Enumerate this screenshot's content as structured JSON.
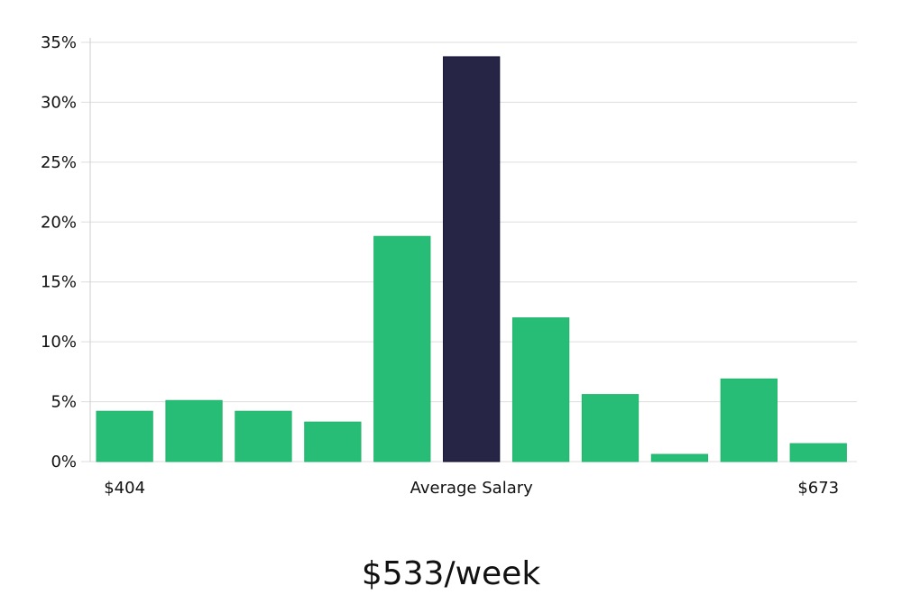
{
  "chart_data": {
    "type": "bar",
    "title": "",
    "xlabel": "",
    "ylabel": "",
    "values": [
      4.2,
      5.1,
      4.2,
      3.3,
      18.8,
      33.8,
      12.0,
      5.6,
      0.6,
      6.9,
      1.5
    ],
    "highlight_index": 5,
    "y_ticks": [
      "0%",
      "5%",
      "10%",
      "15%",
      "20%",
      "25%",
      "30%",
      "35%"
    ],
    "ylim": [
      0,
      35
    ],
    "grid": true,
    "x_annotations": {
      "left": "$404",
      "center": "Average Salary",
      "right": "$673"
    },
    "headline": "$533/week",
    "colors": {
      "bar": "#28bd76",
      "highlight": "#272546",
      "grid": "#dddddd",
      "axis": "#cccccc"
    }
  }
}
